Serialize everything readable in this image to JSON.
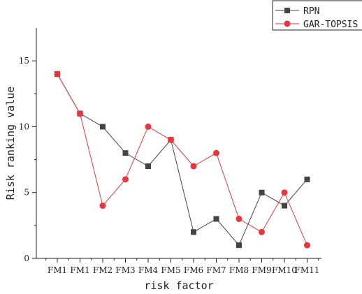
{
  "chart_data": {
    "type": "line",
    "title": "",
    "xlabel": "risk factor",
    "ylabel": "Risk ranking value",
    "categories": [
      "FM1",
      "FM1",
      "FM2",
      "FM3",
      "FM4",
      "FM5",
      "FM6",
      "FM7",
      "FM8",
      "FM9",
      "FM10",
      "FM11"
    ],
    "ylim": [
      0,
      17.5
    ],
    "yticks": [
      0,
      5,
      10,
      15
    ],
    "grid": false,
    "legend_position": "top-right",
    "series": [
      {
        "name": "RPN",
        "marker": "square",
        "color": "#444444",
        "values": [
          14,
          11,
          10,
          8,
          7,
          9,
          2,
          3,
          1,
          5,
          4,
          6
        ]
      },
      {
        "name": "GAR-TOPSIS",
        "marker": "circle",
        "color": "#e8363c",
        "values": [
          14,
          11,
          4,
          6,
          10,
          9,
          7,
          8,
          3,
          2,
          5,
          1
        ]
      }
    ]
  }
}
